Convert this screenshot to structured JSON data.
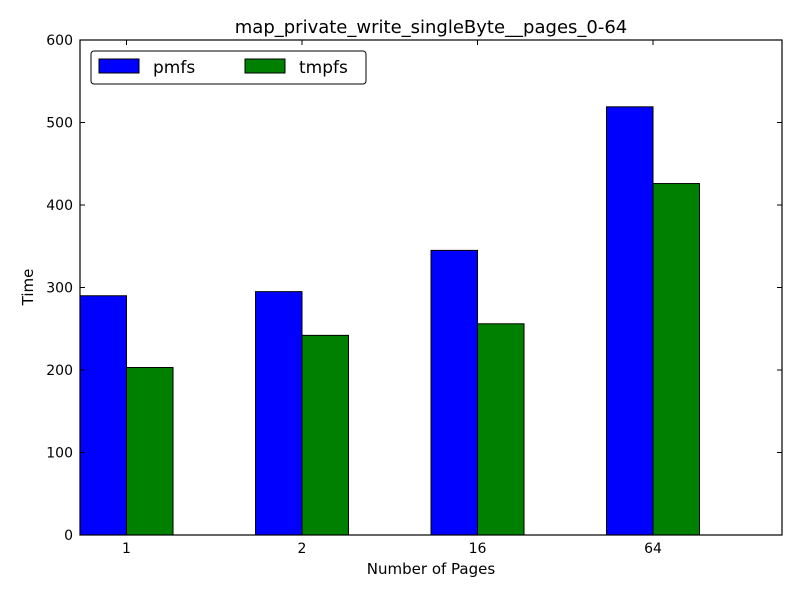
{
  "chart_data": {
    "type": "bar",
    "title": "map_private_write_singleByte__pages_0-64",
    "xlabel": "Number of Pages",
    "ylabel": "Time",
    "categories": [
      "1",
      "2",
      "16",
      "64"
    ],
    "series": [
      {
        "name": "pmfs",
        "values": [
          290,
          295,
          345,
          519
        ],
        "color": "#0000ff"
      },
      {
        "name": "tmpfs",
        "values": [
          203,
          242,
          256,
          426
        ],
        "color": "#008000"
      }
    ],
    "ylim": [
      0,
      600
    ],
    "yticks": [
      0,
      100,
      200,
      300,
      400,
      500,
      600
    ],
    "grid": false,
    "legend_position": "top-left"
  }
}
